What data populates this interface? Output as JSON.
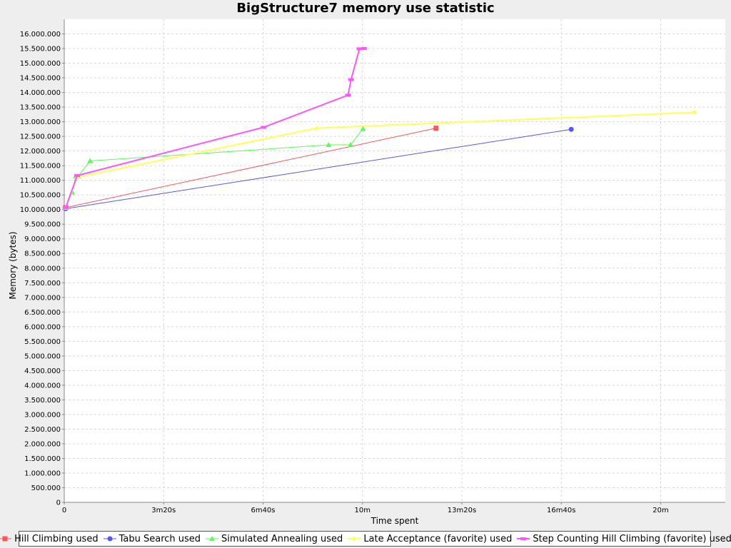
{
  "title": "BigStructure7 memory use statistic",
  "chart_data": {
    "type": "line",
    "title": "BigStructure7 memory use statistic",
    "xlabel": "Time spent",
    "ylabel": "Memory (bytes)",
    "xlim": [
      0,
      1330
    ],
    "ylim": [
      0,
      16500000
    ],
    "x_unit": "seconds",
    "x_ticks": [
      {
        "value": 0,
        "label": "0"
      },
      {
        "value": 200,
        "label": "3m20s"
      },
      {
        "value": 400,
        "label": "6m40s"
      },
      {
        "value": 600,
        "label": "10m"
      },
      {
        "value": 800,
        "label": "13m20s"
      },
      {
        "value": 1000,
        "label": "16m40s"
      },
      {
        "value": 1200,
        "label": "20m"
      }
    ],
    "y_ticks": [
      {
        "value": 0,
        "label": "0"
      },
      {
        "value": 500000,
        "label": "500.000"
      },
      {
        "value": 1000000,
        "label": "1.000.000"
      },
      {
        "value": 1500000,
        "label": "1.500.000"
      },
      {
        "value": 2000000,
        "label": "2.000.000"
      },
      {
        "value": 2500000,
        "label": "2.500.000"
      },
      {
        "value": 3000000,
        "label": "3.000.000"
      },
      {
        "value": 3500000,
        "label": "3.500.000"
      },
      {
        "value": 4000000,
        "label": "4.000.000"
      },
      {
        "value": 4500000,
        "label": "4.500.000"
      },
      {
        "value": 5000000,
        "label": "5.000.000"
      },
      {
        "value": 5500000,
        "label": "5.500.000"
      },
      {
        "value": 6000000,
        "label": "6.000.000"
      },
      {
        "value": 6500000,
        "label": "6.500.000"
      },
      {
        "value": 7000000,
        "label": "7.000.000"
      },
      {
        "value": 7500000,
        "label": "7.500.000"
      },
      {
        "value": 8000000,
        "label": "8.000.000"
      },
      {
        "value": 8500000,
        "label": "8.500.000"
      },
      {
        "value": 9000000,
        "label": "9.000.000"
      },
      {
        "value": 9500000,
        "label": "9.500.000"
      },
      {
        "value": 10000000,
        "label": "10.000.000"
      },
      {
        "value": 10500000,
        "label": "10.500.000"
      },
      {
        "value": 11000000,
        "label": "11.000.000"
      },
      {
        "value": 11500000,
        "label": "11.500.000"
      },
      {
        "value": 12000000,
        "label": "12.000.000"
      },
      {
        "value": 12500000,
        "label": "12.500.000"
      },
      {
        "value": 13000000,
        "label": "13.000.000"
      },
      {
        "value": 13500000,
        "label": "13.500.000"
      },
      {
        "value": 14000000,
        "label": "14.000.000"
      },
      {
        "value": 14500000,
        "label": "14.500.000"
      },
      {
        "value": 15000000,
        "label": "15.000.000"
      },
      {
        "value": 15500000,
        "label": "15.500.000"
      },
      {
        "value": 16000000,
        "label": "16.000.000"
      }
    ],
    "grid": true,
    "legend_position": "bottom",
    "series": [
      {
        "name": "Hill Climbing used",
        "color": "#ff5555",
        "marker": "square",
        "stroke": 1,
        "points": [
          [
            3,
            10070000
          ],
          [
            748,
            12780000
          ]
        ]
      },
      {
        "name": "Tabu Search used",
        "color": "#5555ff",
        "marker": "circle",
        "stroke": 1,
        "points": [
          [
            3,
            10030000
          ],
          [
            1020,
            12740000
          ]
        ]
      },
      {
        "name": "Simulated Annealing used",
        "color": "#55ff55",
        "marker": "triangle",
        "stroke": 1,
        "points": [
          [
            3,
            10060000
          ],
          [
            16,
            10590000
          ],
          [
            23,
            11140000
          ],
          [
            28,
            11140000
          ],
          [
            52,
            11660000
          ],
          [
            532,
            12210000
          ],
          [
            576,
            12210000
          ],
          [
            601,
            12760000
          ]
        ]
      },
      {
        "name": "Late Acceptance (favorite) used",
        "color": "#ffff55",
        "marker": "diamond",
        "stroke": 2,
        "points": [
          [
            3,
            10070000
          ],
          [
            26,
            11100000
          ],
          [
            508,
            12780000
          ],
          [
            1268,
            13320000
          ]
        ]
      },
      {
        "name": "Step Counting Hill Climbing (favorite) used",
        "color": "#ff55ff",
        "marker": "hbar",
        "stroke": 2,
        "points": [
          [
            3,
            10070000
          ],
          [
            26,
            11160000
          ],
          [
            401,
            12810000
          ],
          [
            571,
            13910000
          ],
          [
            577,
            14440000
          ],
          [
            594,
            15490000
          ],
          [
            603,
            15500000
          ]
        ]
      }
    ]
  }
}
